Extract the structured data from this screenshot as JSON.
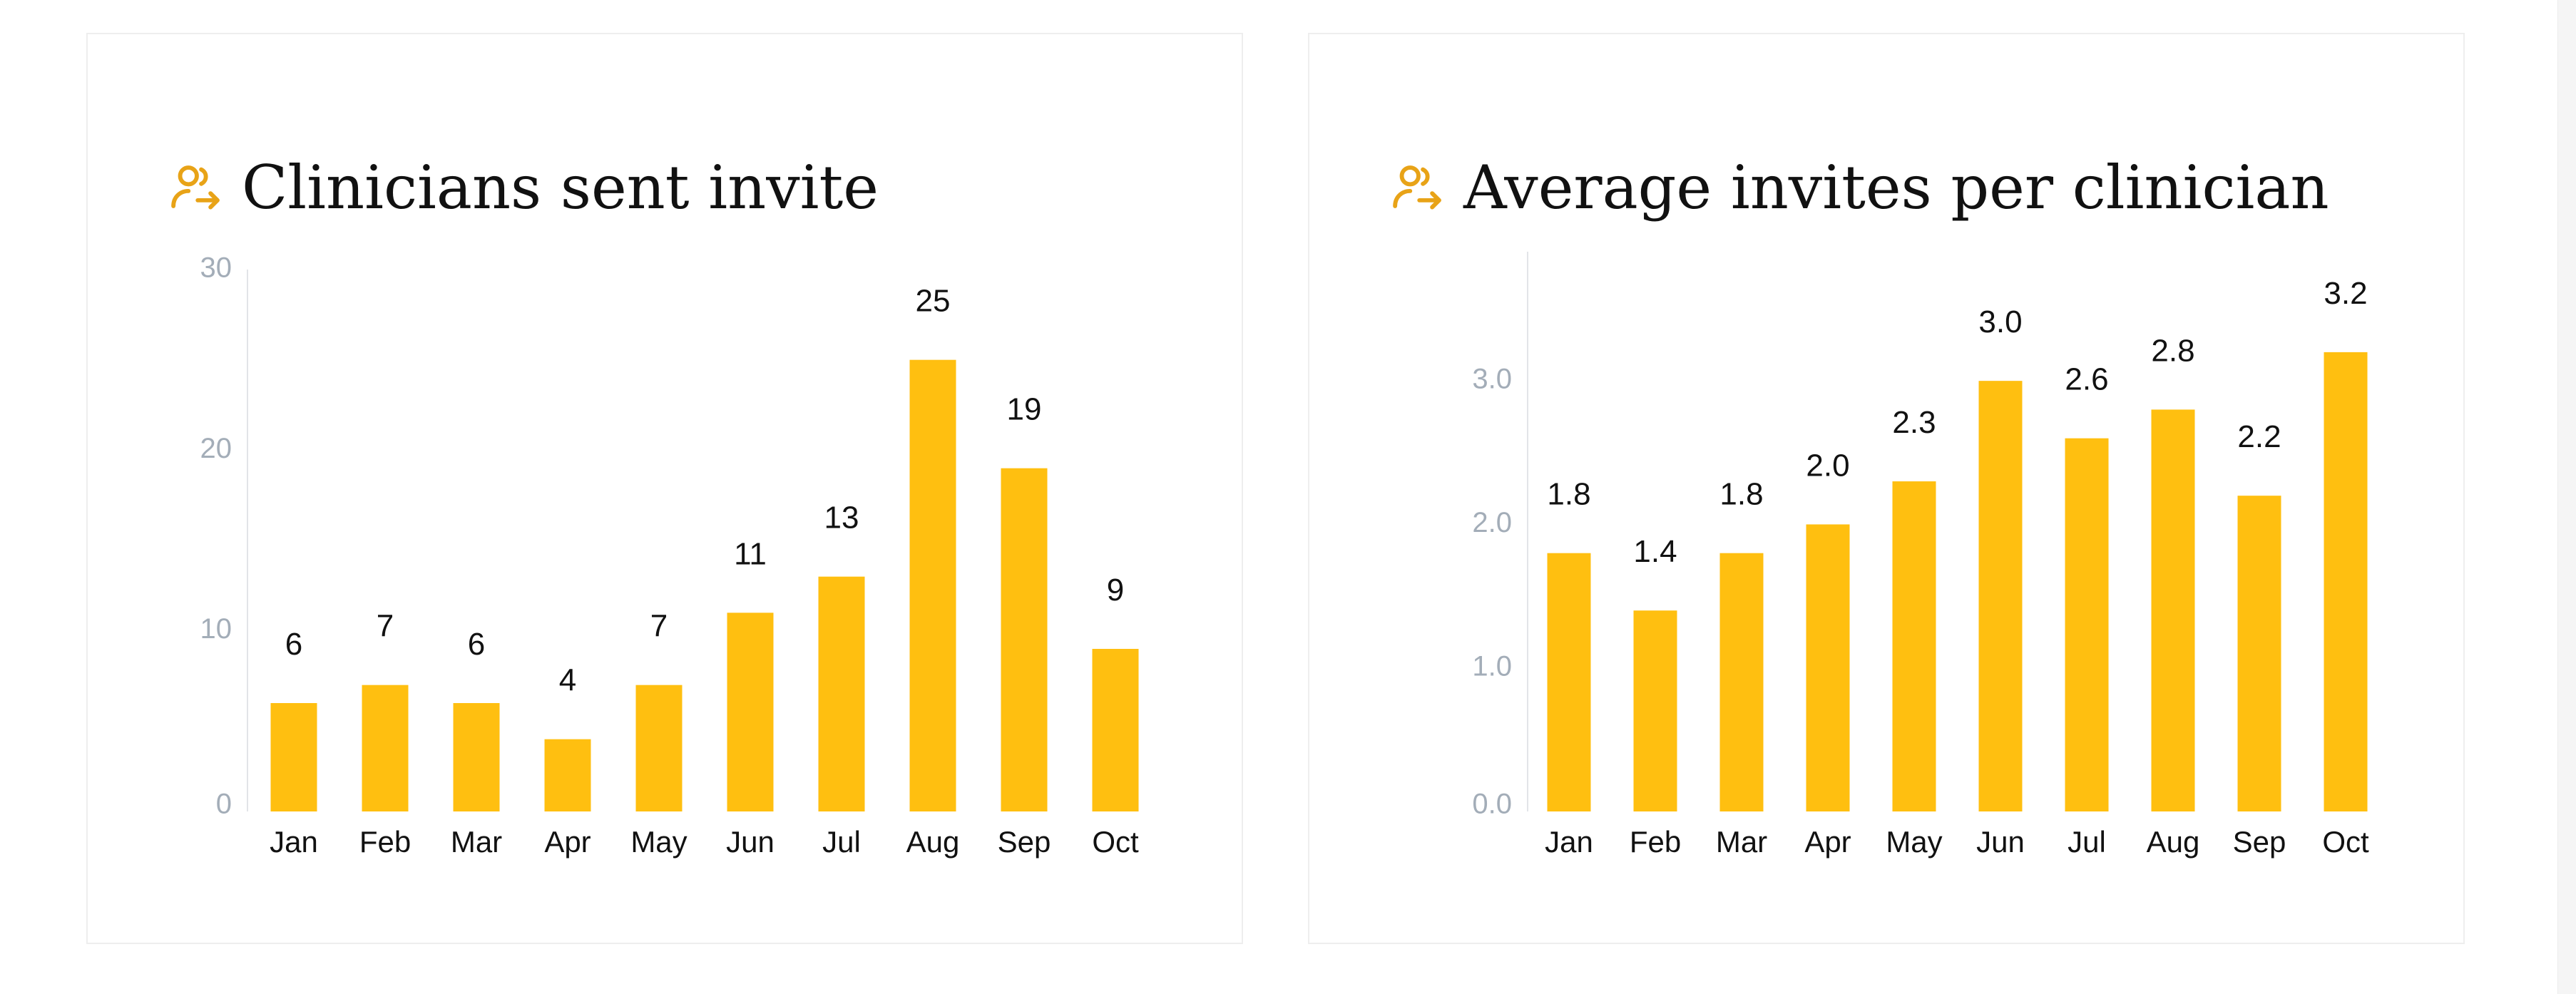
{
  "colors": {
    "bar": "#ffbf10",
    "icon": "#e8a317",
    "axis": "#e2e4e8",
    "tick": "#a3adb8"
  },
  "cards": [
    {
      "title": "Clinicians sent invite",
      "icon": "user-send-icon"
    },
    {
      "title": "Average invites per clinician",
      "icon": "user-send-icon"
    }
  ],
  "chart_data": [
    {
      "type": "bar",
      "title": "Clinicians sent invite",
      "categories": [
        "Jan",
        "Feb",
        "Mar",
        "Apr",
        "May",
        "Jun",
        "Jul",
        "Aug",
        "Sep",
        "Oct"
      ],
      "values": [
        6,
        7,
        6,
        4,
        7,
        11,
        13,
        25,
        19,
        9
      ],
      "data_labels": [
        "6",
        "7",
        "6",
        "4",
        "7",
        "11",
        "13",
        "25",
        "19",
        "9"
      ],
      "ylim": [
        0,
        30
      ],
      "yticks": [
        0,
        10,
        20,
        30
      ],
      "ytick_labels": [
        "0",
        "10",
        "20",
        "30"
      ],
      "grid": false,
      "legend": false
    },
    {
      "type": "bar",
      "title": "Average invites per clinician",
      "categories": [
        "Jan",
        "Feb",
        "Mar",
        "Apr",
        "May",
        "Jun",
        "Jul",
        "Aug",
        "Sep",
        "Oct"
      ],
      "values": [
        1.8,
        1.4,
        1.8,
        2.0,
        2.3,
        3.0,
        2.6,
        2.8,
        2.2,
        3.2
      ],
      "data_labels": [
        "1.8",
        "1.4",
        "1.8",
        "2.0",
        "2.3",
        "3.0",
        "2.6",
        "2.8",
        "2.2",
        "3.2"
      ],
      "ylim": [
        0,
        3.9
      ],
      "yticks": [
        0,
        1,
        2,
        3
      ],
      "ytick_labels": [
        "0.0",
        "1.0",
        "2.0",
        "3.0"
      ],
      "grid": false,
      "legend": false
    }
  ]
}
